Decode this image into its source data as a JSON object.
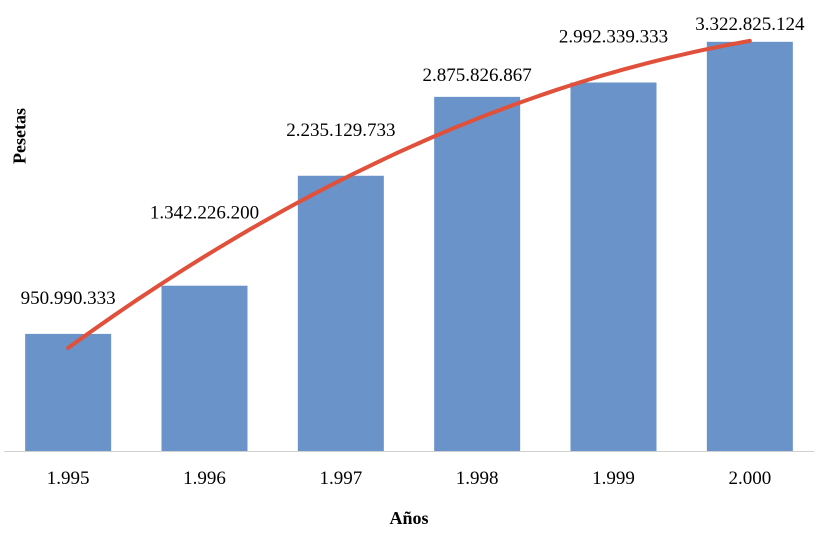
{
  "chart_data": {
    "type": "bar",
    "categories": [
      "1.995",
      "1.996",
      "1.997",
      "1.998",
      "1.999",
      "2.000"
    ],
    "values": [
      950990333,
      1342226200,
      2235129733,
      2875826867,
      2992339333,
      3322825124
    ],
    "value_labels": [
      "950.990.333",
      "1.342.226.200",
      "2.235.129.733",
      "2.875.826.867",
      "2.992.339.333",
      "3.322.825.124"
    ],
    "title": "",
    "xlabel": "Años",
    "ylabel": "Pesetas",
    "ylim": [
      0,
      3500000000
    ],
    "grid": false,
    "trendline": {
      "type": "polynomial",
      "color": "#E0503A"
    },
    "bar_color": "#6A93C9"
  }
}
